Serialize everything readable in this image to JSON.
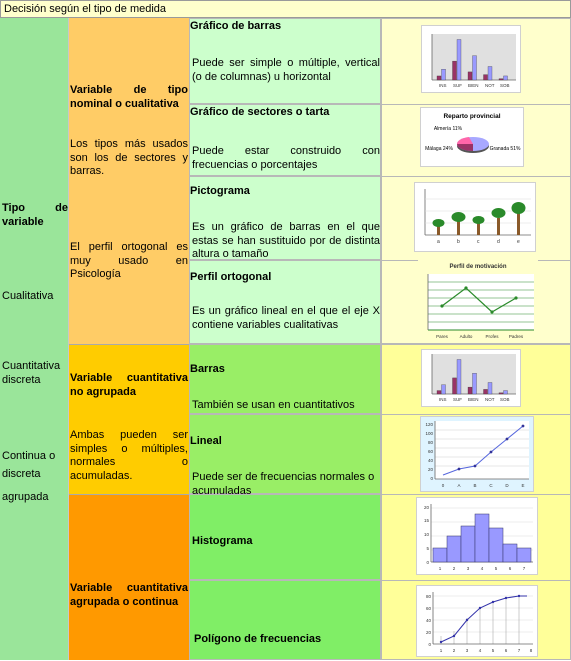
{
  "header": {
    "title": "Decisión según el tipo de medida"
  },
  "col1": {
    "tipo_variable": "Tipo de variable",
    "cualitativa": "Cualitativa",
    "cuantitativa_discreta": "Cuantitativa discreta",
    "continua_o": "Continua o",
    "discreta": "discreta",
    "agrupada": "agrupada"
  },
  "col2": {
    "nominal_heading": "Variable de tipo nominal o cualitativa",
    "nominal_text": "Los tipos más usados son los de sectores y barras.",
    "ortogonal_text": "El perfil ortogonal es muy usado en Psicología",
    "no_agrupada_heading": "Variable cuantitativa no agrupada",
    "no_agrupada_text": "Ambas pueden ser simples o múltiples, normales o acumuladas.",
    "agrupada_heading": "Variable cuantitativa agrupada o continua"
  },
  "rows": [
    {
      "title": "Gráfico de barras",
      "desc": "Puede ser simple o múltiple, vertical (o de columnas) u horizontal",
      "icon": "bar-chart-thumbnail"
    },
    {
      "title": "Gráfico de sectores o tarta",
      "desc": "Puede estar construido con frecuencias o porcentajes",
      "icon": "pie-chart-thumbnail"
    },
    {
      "title": "Pictograma",
      "desc": "Es un gráfico de barras en el que estas se han sustituido por de distinta altura o tamaño",
      "icon": "pictogram-thumbnail"
    },
    {
      "title": "Perfil ortogonal",
      "desc": "Es un gráfico lineal en el que el eje X contiene variables cualitativas",
      "icon": "line-profile-thumbnail"
    },
    {
      "title": "Barras",
      "desc": "También se usan en cuantitativos",
      "icon": "bar-chart-thumbnail"
    },
    {
      "title": "Lineal",
      "desc": "Puede ser de frecuencias normales o acumuladas",
      "icon": "line-chart-thumbnail"
    },
    {
      "title": "Histograma",
      "desc": "",
      "icon": "histogram-thumbnail"
    },
    {
      "title": "Polígono de frecuencias",
      "desc": "",
      "icon": "frequency-polygon-thumbnail"
    }
  ],
  "thumb_text": {
    "bar_categories": [
      "INS",
      "SUF",
      "BIEN",
      "NOT",
      "SOB"
    ],
    "pie_title": "Reparto provincial",
    "pie_labels": [
      "Almería 11%",
      "Málaga 24%",
      "Granada 51%"
    ],
    "pict_categories": [
      "a",
      "b",
      "c",
      "d",
      "e"
    ],
    "profile_title": "Perfil de motivación",
    "profile_categories": [
      "Pares",
      "Adulto",
      "Profes",
      "Padres"
    ],
    "line_x": [
      "0",
      "A",
      "B",
      "C",
      "D",
      "E"
    ],
    "line_y": [
      "0",
      "20",
      "40",
      "60",
      "80",
      "100",
      "120"
    ],
    "hist_x": [
      "1",
      "2",
      "3",
      "4",
      "5",
      "6",
      "7"
    ],
    "hist_y": [
      "0",
      "5",
      "10",
      "15",
      "20"
    ],
    "poly_x": [
      "1",
      "2",
      "3",
      "4",
      "5",
      "6",
      "7",
      "8"
    ],
    "poly_y": [
      "0",
      "20",
      "40",
      "60",
      "80"
    ]
  },
  "colors": {
    "col1": "#9ae59a",
    "col2_top": "#ffcc66",
    "col2_mid": "#ffcc00",
    "col2_bottom": "#ff9900",
    "col3_light": "#ccffcc",
    "col3_green": "#80ee66",
    "col4_light": "#ffffcc",
    "col4_yellow": "#ffff99",
    "bar_fill": "#9999ff"
  }
}
